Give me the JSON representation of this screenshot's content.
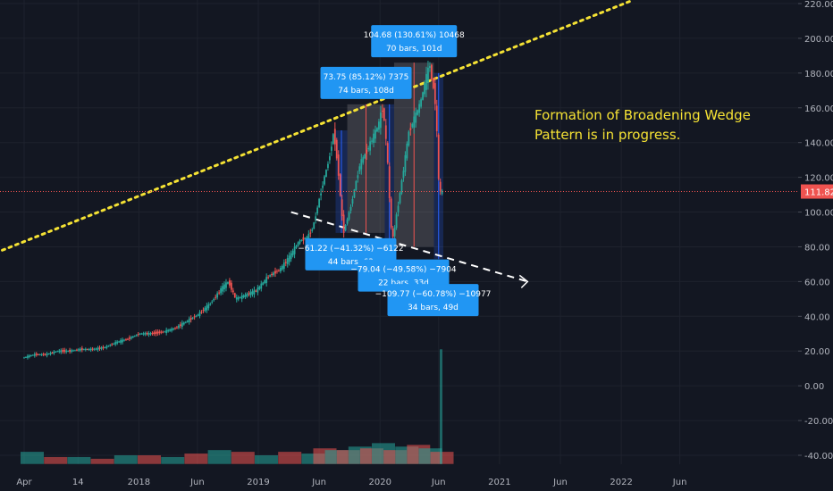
{
  "chart_data": {
    "type": "candlestick",
    "title": "",
    "xlabel": "",
    "ylabel": "",
    "ylim": [
      -45,
      222
    ],
    "grid": true,
    "y_ticks": [
      220,
      200,
      180,
      160,
      140,
      120,
      100,
      80,
      60,
      40,
      20,
      0,
      -20,
      -40
    ],
    "y_tick_labels": [
      "220.00",
      "200.00",
      "180.00",
      "160.00",
      "140.00",
      "120.00",
      "100.00",
      "80.00",
      "60.00",
      "40.00",
      "20.00",
      "0.00",
      "-20.00",
      "-40.00"
    ],
    "x_ticks": [
      {
        "label": "Apr",
        "t": 0
      },
      {
        "label": "14",
        "t": 0.23
      },
      {
        "label": "2018",
        "t": 0.49
      },
      {
        "label": "Jun",
        "t": 0.74
      },
      {
        "label": "2019",
        "t": 1.0
      },
      {
        "label": "Jun",
        "t": 1.26
      },
      {
        "label": "2020",
        "t": 1.52
      },
      {
        "label": "Jun",
        "t": 1.77
      },
      {
        "label": "2021",
        "t": 2.03
      },
      {
        "label": "Jun",
        "t": 2.29
      },
      {
        "label": "2022",
        "t": 2.55
      },
      {
        "label": "Jun",
        "t": 2.8
      }
    ],
    "price_path": [
      [
        0.0,
        16
      ],
      [
        0.05,
        18
      ],
      [
        0.1,
        18
      ],
      [
        0.15,
        20
      ],
      [
        0.2,
        20
      ],
      [
        0.25,
        21
      ],
      [
        0.3,
        21
      ],
      [
        0.35,
        22
      ],
      [
        0.4,
        25
      ],
      [
        0.45,
        27
      ],
      [
        0.5,
        30
      ],
      [
        0.55,
        30
      ],
      [
        0.6,
        31
      ],
      [
        0.65,
        33
      ],
      [
        0.7,
        37
      ],
      [
        0.75,
        41
      ],
      [
        0.8,
        47
      ],
      [
        0.85,
        56
      ],
      [
        0.88,
        60
      ],
      [
        0.91,
        50
      ],
      [
        0.95,
        52
      ],
      [
        1.0,
        55
      ],
      [
        1.05,
        63
      ],
      [
        1.1,
        67
      ],
      [
        1.14,
        74
      ],
      [
        1.18,
        83
      ],
      [
        1.22,
        86
      ],
      [
        1.24,
        91
      ],
      [
        1.28,
        115
      ],
      [
        1.31,
        131
      ],
      [
        1.33,
        147
      ],
      [
        1.35,
        122
      ],
      [
        1.37,
        88
      ],
      [
        1.4,
        102
      ],
      [
        1.44,
        127
      ],
      [
        1.48,
        138
      ],
      [
        1.52,
        150
      ],
      [
        1.54,
        161
      ],
      [
        1.56,
        128
      ],
      [
        1.57,
        100
      ],
      [
        1.58,
        83
      ],
      [
        1.61,
        109
      ],
      [
        1.63,
        127
      ],
      [
        1.65,
        146
      ],
      [
        1.68,
        156
      ],
      [
        1.7,
        163
      ],
      [
        1.72,
        175
      ],
      [
        1.74,
        185
      ],
      [
        1.75,
        173
      ],
      [
        1.76,
        170
      ],
      [
        1.77,
        145
      ],
      [
        1.78,
        110
      ],
      [
        1.79,
        112
      ]
    ],
    "volume": [
      [
        0.0,
        -45,
        -38
      ],
      [
        0.1,
        -45,
        -41
      ],
      [
        0.2,
        -45,
        -41
      ],
      [
        0.3,
        -45,
        -42
      ],
      [
        0.4,
        -45,
        -40
      ],
      [
        0.5,
        -45,
        -40
      ],
      [
        0.6,
        -45,
        -41
      ],
      [
        0.7,
        -45,
        -39
      ],
      [
        0.8,
        -45,
        -37
      ],
      [
        0.9,
        -45,
        -38
      ],
      [
        1.0,
        -45,
        -40
      ],
      [
        1.1,
        -45,
        -38
      ],
      [
        1.2,
        -45,
        -39
      ],
      [
        1.25,
        -45,
        -36
      ],
      [
        1.3,
        -45,
        -37
      ],
      [
        1.35,
        -45,
        -37
      ],
      [
        1.4,
        -45,
        -35
      ],
      [
        1.45,
        -45,
        -36
      ],
      [
        1.5,
        -45,
        -33
      ],
      [
        1.55,
        -45,
        -37
      ],
      [
        1.6,
        -45,
        -35
      ],
      [
        1.65,
        -45,
        -34
      ],
      [
        1.7,
        -45,
        -36
      ],
      [
        1.75,
        -45,
        -38
      ],
      [
        1.79,
        -45,
        21
      ]
    ],
    "current_price": 111.82,
    "current_price_label": "111.82",
    "trendline_upper": {
      "from": [
        -0.15,
        75
      ],
      "to": [
        2.6,
        222
      ]
    },
    "trendline_lower": {
      "from": [
        1.14,
        100
      ],
      "to": [
        2.15,
        60
      ]
    },
    "measure_boxes": [
      {
        "from_t": 1.33,
        "to_t": 1.38,
        "top": 147,
        "bottom": 88,
        "color": "#2962ff",
        "line1": "−61.22 (−41.32%) −6122",
        "line2": "44 bars, 63"
      },
      {
        "from_t": 1.38,
        "to_t": 1.54,
        "top": 162,
        "bottom": 88,
        "color": "#e0d8da",
        "line1": "73.75 (85.12%) 7375",
        "line2": "74 bars, 108d"
      },
      {
        "from_t": 1.54,
        "to_t": 1.58,
        "top": 162,
        "bottom": 82,
        "color": "#2962ff",
        "line1": "−79.04 (−49.58%) −7904",
        "line2": "22 bars, 33d"
      },
      {
        "from_t": 1.58,
        "to_t": 1.75,
        "top": 186,
        "bottom": 80,
        "color": "#e0d8da",
        "line1": "104.68 (130.61%) 10468",
        "line2": "70 bars, 101d"
      },
      {
        "from_t": 1.75,
        "to_t": 1.79,
        "top": 180,
        "bottom": 73,
        "color": "#2962ff",
        "line1": "−109.77 (−60.78%) −10977",
        "line2": "34 bars, 49d"
      }
    ],
    "annotation_text": [
      "Formation of Broadening Wedge",
      "Pattern is in progress."
    ]
  },
  "colors": {
    "background": "#131722",
    "grid": "#1e222d",
    "up": "#26a69a",
    "down": "#ef5350",
    "trend_upper": "#f5e234",
    "trend_lower": "#ffffff",
    "price_line": "#ef5350",
    "label_bg": "#2196f3",
    "annotation": "#f5e234"
  }
}
